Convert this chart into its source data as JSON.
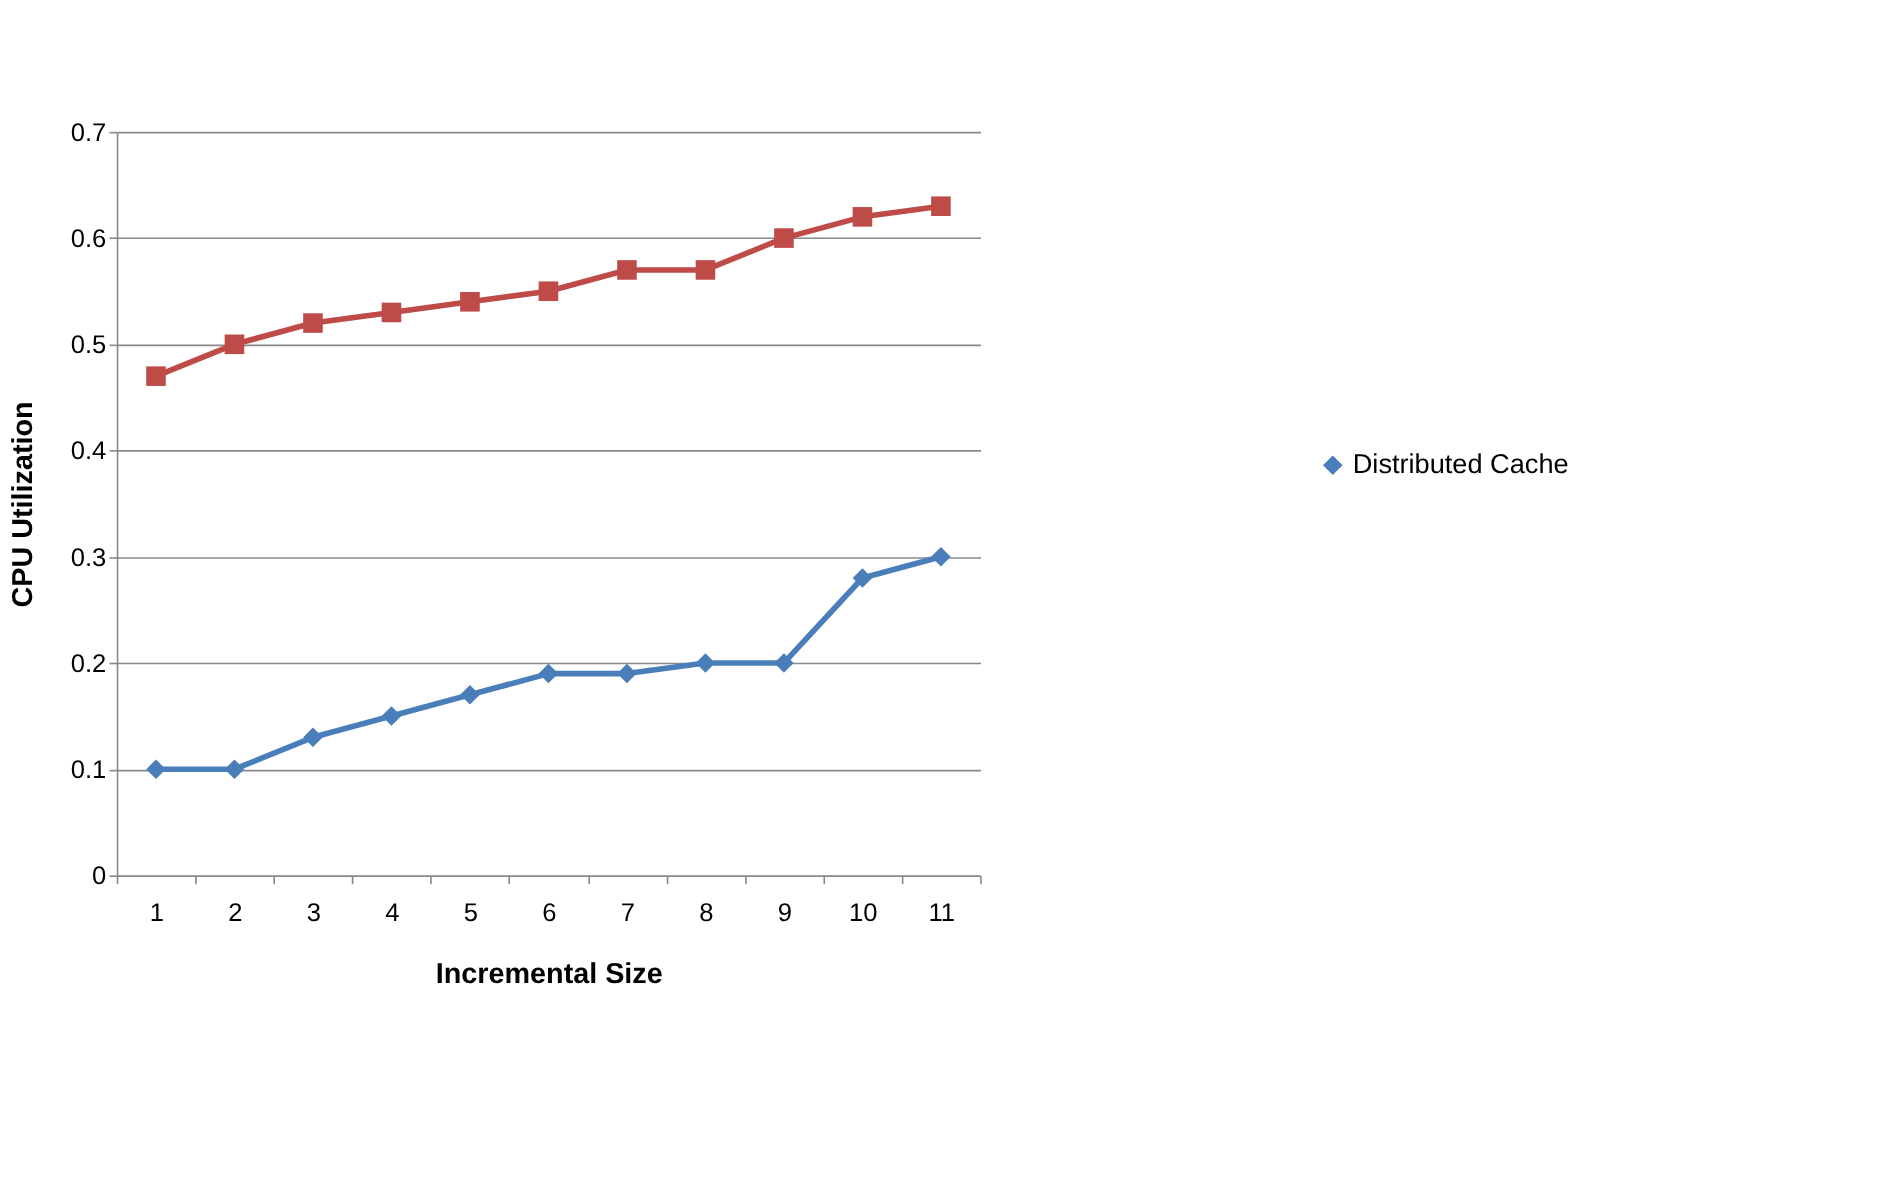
{
  "chart_data": {
    "type": "line",
    "xlabel": "Incremental Size",
    "ylabel": "CPU Utilization",
    "categories": [
      "1",
      "2",
      "3",
      "4",
      "5",
      "6",
      "7",
      "8",
      "9",
      "10",
      "11"
    ],
    "series": [
      {
        "name": "Distributed Cache",
        "color": "#4a7ebb",
        "marker": "diamond",
        "values": [
          0.1,
          0.1,
          0.13,
          0.15,
          0.17,
          0.19,
          0.19,
          0.2,
          0.2,
          0.28,
          0.3
        ]
      },
      {
        "color": "#be4b48",
        "marker": "square",
        "values": [
          0.47,
          0.5,
          0.52,
          0.53,
          0.54,
          0.55,
          0.57,
          0.57,
          0.6,
          0.62,
          0.63
        ]
      }
    ],
    "ylim": [
      0,
      0.7
    ],
    "yticks": [
      0,
      0.1,
      0.2,
      0.3,
      0.4,
      0.5,
      0.6,
      0.7
    ],
    "grid": "y",
    "legend": "right",
    "line_style": "solid"
  }
}
